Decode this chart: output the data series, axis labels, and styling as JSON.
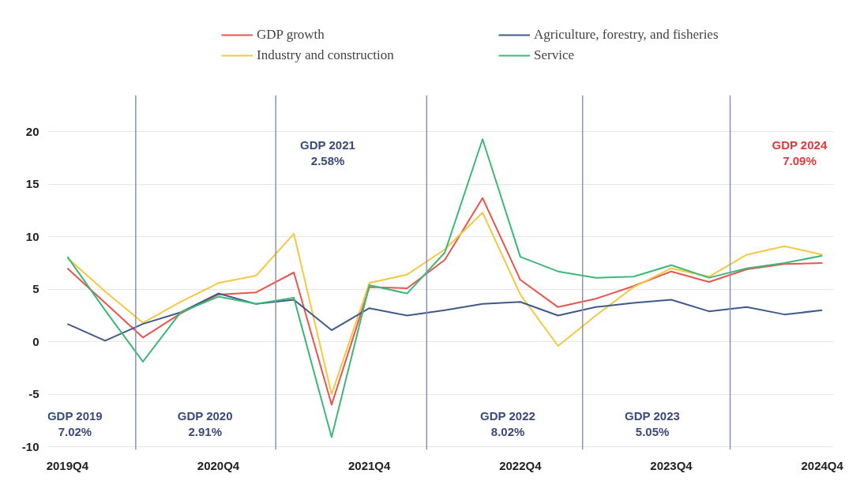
{
  "chart_data": {
    "type": "line",
    "categories": [
      "2019Q4",
      null,
      null,
      null,
      "2020Q4",
      null,
      null,
      null,
      "2021Q4",
      null,
      null,
      null,
      "2022Q4",
      null,
      null,
      null,
      "2023Q4",
      null,
      null,
      null,
      "2024Q4"
    ],
    "series": [
      {
        "name": "GDP growth",
        "color": "#e8554e",
        "values": [
          7.0,
          3.7,
          0.4,
          2.7,
          4.5,
          4.7,
          6.6,
          -6.0,
          5.2,
          5.1,
          7.8,
          13.7,
          5.9,
          3.3,
          4.1,
          5.3,
          6.7,
          5.7,
          6.9,
          7.4,
          7.5
        ]
      },
      {
        "name": "Industry and construction",
        "color": "#f5c842",
        "values": [
          8.0,
          4.8,
          1.8,
          3.8,
          5.6,
          6.3,
          10.3,
          -5.0,
          5.6,
          6.4,
          8.8,
          12.3,
          4.5,
          -0.4,
          2.5,
          5.2,
          7.0,
          6.2,
          8.3,
          9.1,
          8.3
        ]
      },
      {
        "name": "Agriculture, forestry, and fisheries",
        "color": "#3f5a8a",
        "values": [
          1.7,
          0.1,
          1.7,
          2.8,
          4.6,
          3.6,
          4.0,
          1.1,
          3.2,
          2.5,
          3.0,
          3.6,
          3.8,
          2.5,
          3.3,
          3.7,
          4.0,
          2.9,
          3.3,
          2.6,
          3.0
        ]
      },
      {
        "name": "Service",
        "color": "#3cb878",
        "values": [
          8.1,
          3.0,
          -1.9,
          2.8,
          4.3,
          3.6,
          4.2,
          -9.1,
          5.4,
          4.6,
          8.5,
          19.3,
          8.1,
          6.7,
          6.1,
          6.2,
          7.3,
          6.1,
          7.0,
          7.5,
          8.2
        ]
      }
    ],
    "ylim": [
      -10.3,
      23.5
    ],
    "yticks": [
      -10,
      -5,
      0,
      5,
      10,
      15,
      20
    ],
    "annotations": [
      "GDP 2019\n7.02%",
      "GDP 2020\n2.91%",
      "GDP 2021\n2.58%",
      "GDP 2022\n8.02%",
      "GDP 2023\n5.05%",
      "GDP 2024\n7.09%"
    ],
    "grid": "y",
    "legend": "top",
    "marker": "none",
    "line_style": "solid"
  }
}
